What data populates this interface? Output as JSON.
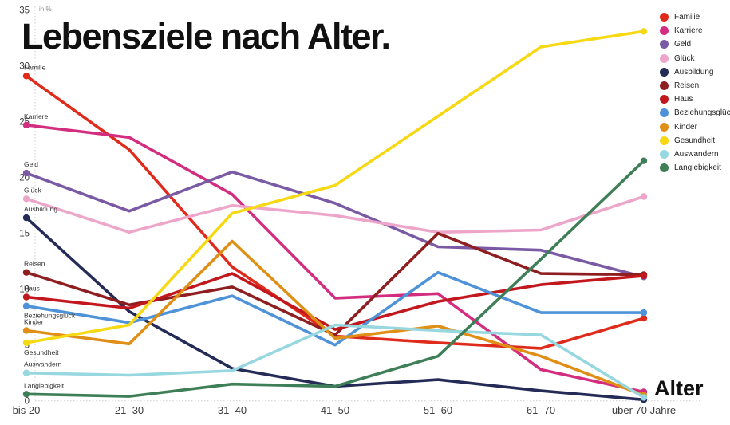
{
  "title": "Lebensziele nach Alter.",
  "y_axis": {
    "unit_label": "in %",
    "ticks": [
      35,
      30,
      25,
      20,
      15,
      10,
      5,
      0
    ],
    "min": 0,
    "max": 35
  },
  "x_axis": {
    "title": "Alter",
    "categories": [
      "bis 20",
      "21–30",
      "31–40",
      "41–50",
      "51–60",
      "61–70",
      "über 70 Jahre"
    ]
  },
  "chart_data": {
    "type": "line",
    "title": "Lebensziele nach Alter.",
    "xlabel": "Alter",
    "ylabel": "in %",
    "ylim": [
      0,
      35
    ],
    "grid": false,
    "legend_position": "top-right",
    "categories": [
      "bis 20",
      "21–30",
      "31–40",
      "41–50",
      "51–60",
      "61–70",
      "über 70 Jahre"
    ],
    "series": [
      {
        "name": "Familie",
        "color": "#df2b1c",
        "start_label": "above",
        "values": [
          29.1,
          22.5,
          12.0,
          5.8,
          5.2,
          4.7,
          7.4
        ]
      },
      {
        "name": "Karriere",
        "color": "#d32d7f",
        "start_label": "above",
        "values": [
          24.7,
          23.6,
          18.5,
          9.2,
          9.6,
          2.8,
          0.8
        ]
      },
      {
        "name": "Geld",
        "color": "#7a5aa4",
        "start_label": "above",
        "values": [
          20.4,
          17.0,
          20.5,
          17.7,
          13.8,
          13.5,
          11.1
        ]
      },
      {
        "name": "Glück",
        "color": "#eda6ca",
        "start_label": "above",
        "values": [
          18.1,
          15.1,
          17.5,
          16.6,
          15.1,
          15.3,
          18.3
        ]
      },
      {
        "name": "Ausbildung",
        "color": "#232b56",
        "start_label": "above",
        "values": [
          16.4,
          8.0,
          2.9,
          1.3,
          1.9,
          0.9,
          0.1
        ]
      },
      {
        "name": "Reisen",
        "color": "#8e1e20",
        "start_label": "above",
        "values": [
          11.5,
          8.6,
          10.2,
          5.9,
          15.0,
          11.4,
          11.3
        ]
      },
      {
        "name": "Haus",
        "color": "#c1171d",
        "start_label": "above",
        "values": [
          9.3,
          8.3,
          11.4,
          6.4,
          8.9,
          10.4,
          11.2
        ]
      },
      {
        "name": "Beziehungsglück",
        "color": "#4e92d8",
        "start_label": "below",
        "values": [
          8.5,
          7.0,
          9.4,
          5.0,
          11.5,
          7.9,
          7.9
        ]
      },
      {
        "name": "Kinder",
        "color": "#e08f16",
        "start_label": "above",
        "values": [
          6.3,
          5.1,
          14.3,
          5.6,
          6.7,
          4.0,
          0.5
        ]
      },
      {
        "name": "Gesundheit",
        "color": "#f6d813",
        "start_label": "below",
        "values": [
          5.2,
          6.8,
          16.8,
          19.3,
          25.5,
          31.7,
          33.1
        ]
      },
      {
        "name": "Auswandern",
        "color": "#97d7e0",
        "start_label": "above",
        "values": [
          2.5,
          2.3,
          2.7,
          6.8,
          6.3,
          5.9,
          0.3
        ]
      },
      {
        "name": "Langlebigkeit",
        "color": "#3f7f57",
        "start_label": "above",
        "values": [
          0.6,
          0.4,
          1.5,
          1.3,
          4.0,
          12.7,
          21.5
        ]
      }
    ]
  }
}
